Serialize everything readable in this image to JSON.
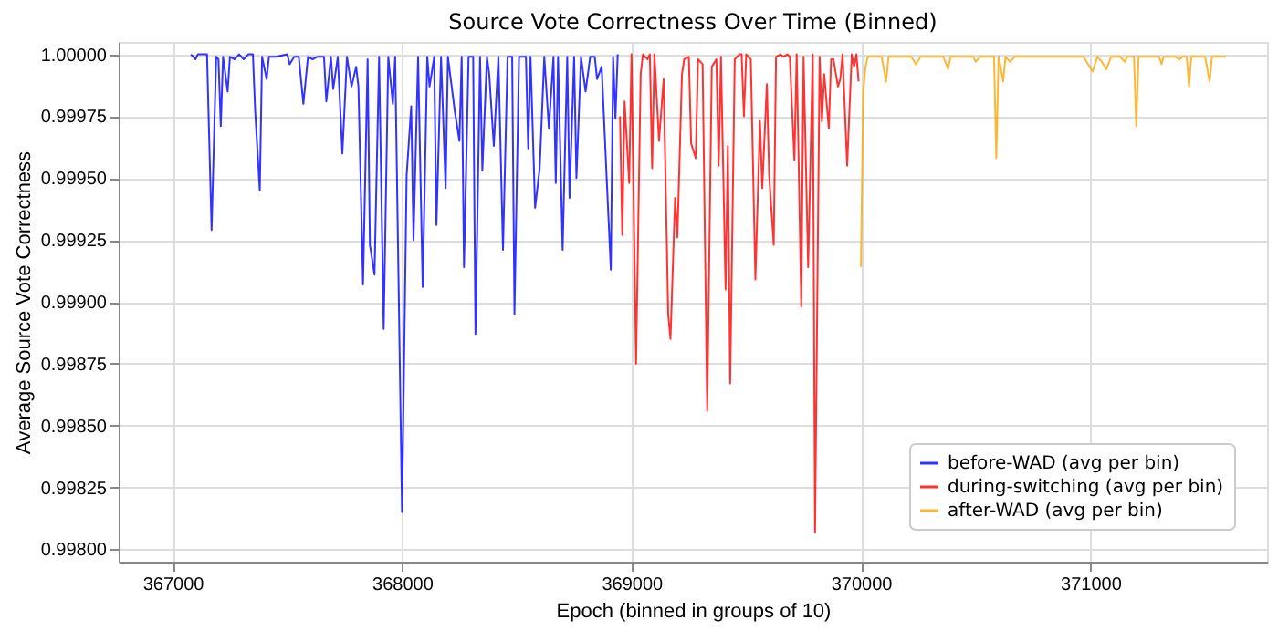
{
  "chart_data": {
    "type": "line",
    "title": "Source Vote Correctness Over Time (Binned)",
    "xlabel": "Epoch (binned in groups of 10)",
    "ylabel": "Average Source Vote Correctness",
    "xlim": [
      366765,
      371770
    ],
    "ylim": [
      0.99795,
      1.00005
    ],
    "xticks": [
      367000,
      368000,
      369000,
      370000,
      371000
    ],
    "yticks": [
      {
        "value": 0.998,
        "label": "0.99800"
      },
      {
        "value": 0.99825,
        "label": "0.99825"
      },
      {
        "value": 0.9985,
        "label": "0.99850"
      },
      {
        "value": 0.99875,
        "label": "0.99875"
      },
      {
        "value": 0.999,
        "label": "0.99900"
      },
      {
        "value": 0.99925,
        "label": "0.99925"
      },
      {
        "value": 0.9995,
        "label": "0.99950"
      },
      {
        "value": 0.99975,
        "label": "0.99975"
      },
      {
        "value": 1.0,
        "label": "1.00000"
      }
    ],
    "grid": true,
    "legend": "bottom right",
    "line_style": "solid",
    "series": [
      {
        "name": "before-WAD (avg per bin)",
        "color": "#0000ff",
        "x": [
          367080,
          367100,
          367110,
          367150,
          367170,
          367190,
          367200,
          367210,
          367220,
          367240,
          367250,
          367270,
          367290,
          367310,
          367330,
          367350,
          367360,
          367380,
          367390,
          367410,
          367420,
          367450,
          367500,
          367510,
          367530,
          367550,
          367570,
          367590,
          367610,
          367630,
          367660,
          367670,
          367690,
          367700,
          367720,
          367740,
          367760,
          367780,
          367800,
          367810,
          367830,
          367850,
          367860,
          367880,
          367900,
          367920,
          367940,
          367960,
          367970,
          368000,
          368020,
          368040,
          368050,
          368070,
          368090,
          368110,
          368120,
          368140,
          368150,
          368170,
          368190,
          368200,
          368230,
          368250,
          368260,
          368270,
          368290,
          368310,
          368320,
          368340,
          368350,
          368370,
          368380,
          368400,
          368420,
          368440,
          368460,
          368480,
          368490,
          368510,
          368540,
          368550,
          368560,
          368580,
          368600,
          368620,
          368640,
          368660,
          368670,
          368680,
          368700,
          368720,
          368730,
          368750,
          368760,
          368780,
          368800,
          368820,
          368840,
          368850,
          368870,
          368910,
          368920,
          368930,
          368940
        ],
        "values": [
          1.0,
          0.99998,
          1.0,
          1.0,
          0.99929,
          0.99999,
          0.99998,
          0.99971,
          0.99999,
          0.99985,
          0.99999,
          0.99998,
          1.0,
          0.99998,
          1.0,
          1.0,
          0.99977,
          0.99945,
          0.99999,
          0.9999,
          0.99999,
          0.99999,
          1.0,
          0.99996,
          0.99999,
          0.99999,
          0.9998,
          0.99999,
          0.99998,
          0.99999,
          0.99999,
          0.99981,
          0.99999,
          0.99986,
          0.99999,
          0.9996,
          0.99999,
          0.99987,
          0.99995,
          0.99987,
          0.99907,
          0.99998,
          0.99923,
          0.99911,
          0.99999,
          0.99889,
          0.99999,
          0.9998,
          0.99999,
          0.99815,
          0.99951,
          0.99979,
          0.99925,
          0.99999,
          0.99906,
          0.99999,
          0.99987,
          0.99999,
          0.99931,
          0.99999,
          0.99946,
          0.99999,
          0.99977,
          0.99965,
          0.99999,
          0.99914,
          0.99999,
          0.99999,
          0.99887,
          0.99999,
          0.99953,
          0.99999,
          0.99992,
          0.99963,
          0.99999,
          0.99921,
          0.99999,
          0.99999,
          0.99895,
          0.99999,
          0.99999,
          0.99962,
          0.99999,
          0.99938,
          0.99954,
          0.99999,
          0.9997,
          0.99999,
          0.99948,
          0.99999,
          0.99921,
          0.99999,
          0.99942,
          0.99999,
          0.9995,
          0.99999,
          0.99985,
          0.99999,
          0.99999,
          0.9999,
          0.99995,
          0.99913,
          0.99999,
          0.99974,
          1.0
        ]
      },
      {
        "name": "during-switching (avg per bin)",
        "color": "#ff0000",
        "x": [
          368950,
          368960,
          368970,
          368990,
          369000,
          369020,
          369040,
          369050,
          369070,
          369080,
          369090,
          369100,
          369120,
          369140,
          369160,
          369170,
          369190,
          369200,
          369220,
          369230,
          369250,
          369260,
          369280,
          369290,
          369310,
          369330,
          369350,
          369370,
          369380,
          369390,
          369410,
          369420,
          369430,
          369450,
          369470,
          369480,
          369490,
          369500,
          369520,
          369540,
          369560,
          369570,
          369590,
          369600,
          369620,
          369630,
          369650,
          369660,
          369680,
          369690,
          369710,
          369720,
          369740,
          369750,
          369770,
          369790,
          369800,
          369820,
          369830,
          369840,
          369860,
          369870,
          369880,
          369900,
          369910,
          369920,
          369940,
          369960,
          369970,
          369980,
          369990
        ],
        "values": [
          0.99975,
          0.99927,
          0.99981,
          0.99948,
          1.0,
          0.99875,
          0.99992,
          1.0,
          0.99998,
          1.0,
          0.99954,
          1.0,
          0.99965,
          0.9999,
          0.99895,
          0.99885,
          0.99942,
          0.99926,
          0.99992,
          0.99998,
          0.99999,
          0.99964,
          0.99958,
          0.99998,
          0.99996,
          0.99856,
          0.99995,
          0.99998,
          0.99955,
          0.99999,
          0.99905,
          0.99963,
          0.99867,
          0.99998,
          1.0,
          1.0,
          0.99975,
          1.0,
          0.99998,
          0.99909,
          0.99973,
          0.99946,
          0.99988,
          0.99951,
          0.99923,
          0.99999,
          1.0,
          0.99999,
          1.0,
          0.99999,
          0.99957,
          1.0,
          0.99898,
          0.99999,
          0.99914,
          1.0,
          0.99807,
          0.99999,
          0.99973,
          0.99992,
          0.9997,
          0.99998,
          0.99998,
          0.99987,
          0.9999,
          1.0,
          0.99955,
          1.0,
          0.99995,
          1.0,
          0.99989
        ]
      },
      {
        "name": "after-WAD (avg per bin)",
        "color": "#ffa500",
        "x": [
          370000,
          370010,
          370020,
          370030,
          370090,
          370110,
          370120,
          370220,
          370240,
          370260,
          370360,
          370380,
          370390,
          370490,
          370500,
          370520,
          370580,
          370590,
          370600,
          370620,
          370630,
          370650,
          370670,
          370820,
          370970,
          370990,
          371010,
          371030,
          371050,
          371070,
          371090,
          371130,
          371150,
          371160,
          371190,
          371200,
          371210,
          371300,
          371310,
          371320,
          371370,
          371390,
          371400,
          371420,
          371430,
          371440,
          371500,
          371520,
          371530,
          371590
        ],
        "values": [
          0.99914,
          0.99985,
          0.99995,
          0.99999,
          0.99999,
          0.99989,
          0.99999,
          0.99999,
          0.99996,
          0.99999,
          0.99999,
          0.99994,
          0.99999,
          0.99999,
          0.99997,
          0.99999,
          0.99999,
          0.99958,
          0.99999,
          0.99989,
          0.99999,
          0.99997,
          0.99999,
          0.99999,
          0.99999,
          0.99996,
          0.99993,
          0.99999,
          0.99997,
          0.99994,
          0.99999,
          0.99999,
          0.99997,
          0.99999,
          0.99999,
          0.99971,
          0.99999,
          0.99999,
          0.99996,
          0.99999,
          0.99999,
          0.99998,
          0.99999,
          0.99999,
          0.99987,
          0.99999,
          0.99999,
          0.99989,
          0.99999,
          0.99999
        ]
      }
    ]
  }
}
